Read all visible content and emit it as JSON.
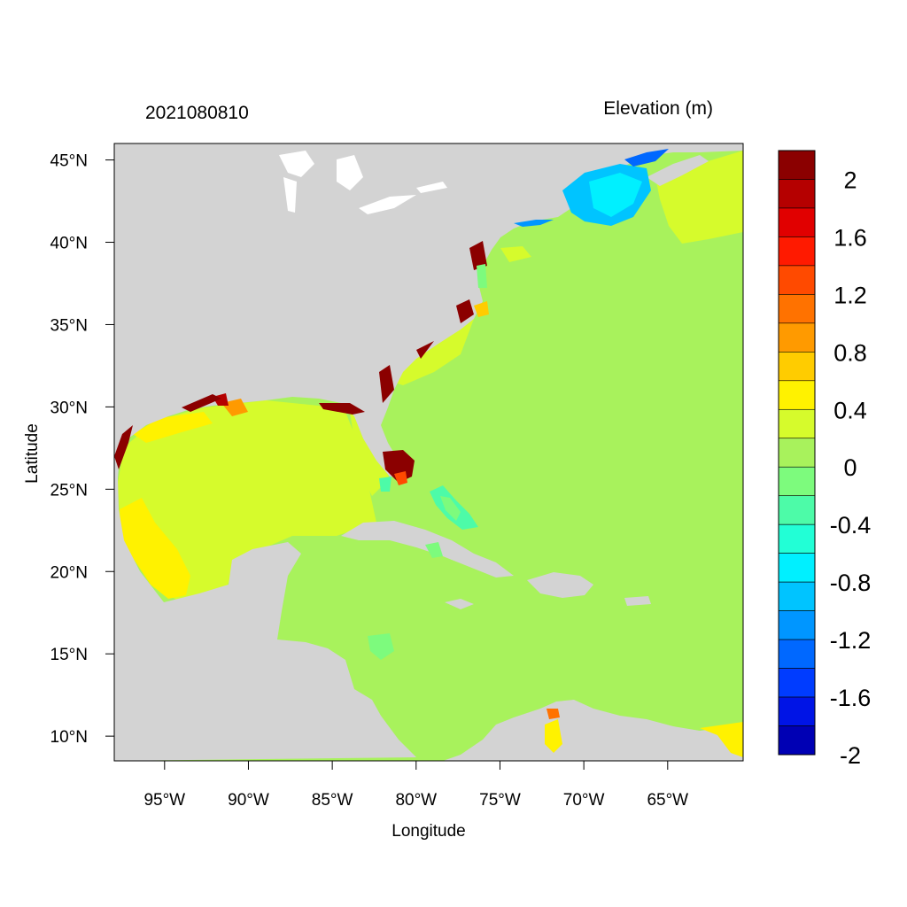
{
  "map": {
    "left_title": "2021080810",
    "right_title": "Elevation (m)",
    "xlabel": "Longitude",
    "ylabel": "Latitude",
    "lon_range": [
      -98,
      -60.5
    ],
    "lat_range": [
      8.5,
      46
    ],
    "x_ticks": [
      {
        "value": -95,
        "label": "95°W"
      },
      {
        "value": -90,
        "label": "90°W"
      },
      {
        "value": -85,
        "label": "85°W"
      },
      {
        "value": -80,
        "label": "80°W"
      },
      {
        "value": -75,
        "label": "75°W"
      },
      {
        "value": -70,
        "label": "70°W"
      },
      {
        "value": -65,
        "label": "65°W"
      }
    ],
    "y_ticks": [
      {
        "value": 45,
        "label": "45°N"
      },
      {
        "value": 40,
        "label": "40°N"
      },
      {
        "value": 35,
        "label": "35°N"
      },
      {
        "value": 30,
        "label": "30°N"
      },
      {
        "value": 25,
        "label": "25°N"
      },
      {
        "value": 20,
        "label": "20°N"
      },
      {
        "value": 15,
        "label": "15°N"
      },
      {
        "value": 10,
        "label": "10°N"
      }
    ],
    "colors": {
      "land": "#d3d3d3",
      "ocean_zero": "#a8f25c",
      "positive_03": "#d6fb2c",
      "positive_05": "#fff200"
    }
  },
  "colorbar": {
    "colors": [
      "#8b0000",
      "#b50000",
      "#e10000",
      "#ff1a00",
      "#ff4a00",
      "#ff7200",
      "#ff9a00",
      "#ffcc00",
      "#fff200",
      "#d6fb2c",
      "#a8f25c",
      "#7dfb7d",
      "#4dfba8",
      "#22ffd6",
      "#00f0ff",
      "#00c4ff",
      "#0096ff",
      "#0068ff",
      "#003cff",
      "#0014e6",
      "#0000b4"
    ],
    "labels": [
      {
        "level": 2,
        "label": "2"
      },
      {
        "level": 1.6,
        "label": "1.6"
      },
      {
        "level": 1.2,
        "label": "1.2"
      },
      {
        "level": 0.8,
        "label": "0.8"
      },
      {
        "level": 0.4,
        "label": "0.4"
      },
      {
        "level": 0,
        "label": "0"
      },
      {
        "level": -0.4,
        "label": "-0.4"
      },
      {
        "level": -0.8,
        "label": "-0.8"
      },
      {
        "level": -1.2,
        "label": "-1.2"
      },
      {
        "level": -1.6,
        "label": "-1.6"
      },
      {
        "level": -2,
        "label": "-2"
      }
    ]
  }
}
